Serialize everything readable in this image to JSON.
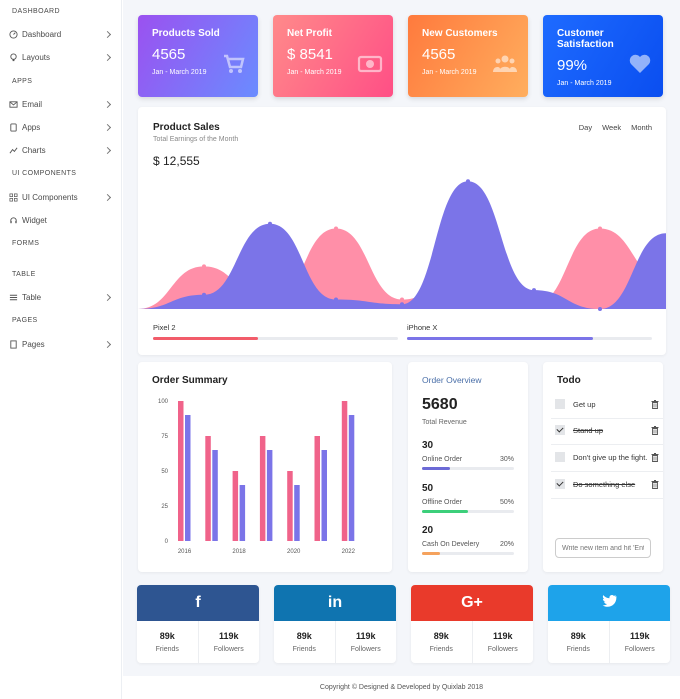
{
  "sidebar": {
    "items": [
      {
        "type": "heading",
        "label": "DASHBOARD"
      },
      {
        "type": "item",
        "label": "Dashboard",
        "icon": "dashboard-icon",
        "chevron": true
      },
      {
        "type": "item",
        "label": "Layouts",
        "icon": "bulb-icon",
        "chevron": true
      },
      {
        "type": "heading",
        "label": "APPS"
      },
      {
        "type": "item",
        "label": "Email",
        "icon": "mail-icon",
        "chevron": true
      },
      {
        "type": "item",
        "label": "Apps",
        "icon": "tablet-icon",
        "chevron": true
      },
      {
        "type": "item",
        "label": "Charts",
        "icon": "chart-icon",
        "chevron": true
      },
      {
        "type": "heading",
        "label": "UI COMPONENTS"
      },
      {
        "type": "item",
        "label": "UI Components",
        "icon": "grid-icon",
        "chevron": true
      },
      {
        "type": "item",
        "label": "Widget",
        "icon": "headset-icon",
        "chevron": false
      },
      {
        "type": "heading",
        "label": "FORMS"
      },
      {
        "type": "spacer"
      },
      {
        "type": "heading",
        "label": "TABLE"
      },
      {
        "type": "item",
        "label": "Table",
        "icon": "menu-icon",
        "chevron": true
      },
      {
        "type": "heading",
        "label": "PAGES"
      },
      {
        "type": "item",
        "label": "Pages",
        "icon": "page-icon",
        "chevron": true
      }
    ]
  },
  "stats": [
    {
      "title": "Products Sold",
      "value": "4565",
      "date": "Jan - March 2019",
      "icon": "cart-icon",
      "from": "#9b51f0",
      "to": "#6a8cff"
    },
    {
      "title": "Net Profit",
      "value": "$ 8541",
      "date": "Jan - March 2019",
      "icon": "money-icon",
      "from": "#ff8a8a",
      "to": "#ff4f86"
    },
    {
      "title": "New Customers",
      "value": "4565",
      "date": "Jan - March 2019",
      "icon": "users-icon",
      "from": "#ff7a3d",
      "to": "#ffae5e"
    },
    {
      "title": "Customer Satisfaction",
      "value": "99%",
      "date": "Jan - March 2019",
      "icon": "heart-icon",
      "from": "#1e6bff",
      "to": "#0a4ef0"
    }
  ],
  "product_sales": {
    "title": "Product Sales",
    "subtitle": "Total Earnings of the Month",
    "amount": "$ 12,555",
    "tabs": [
      "Day",
      "Week",
      "Month"
    ],
    "legend": [
      {
        "name": "Pixel 2",
        "color": "#f25c6a",
        "progress": 0.43
      },
      {
        "name": "iPhone X",
        "color": "#7b74e8",
        "progress": 0.76
      }
    ]
  },
  "order_summary": {
    "title": "Order Summary"
  },
  "chart_data": [
    {
      "type": "area",
      "x": [
        0,
        1,
        2,
        3,
        4,
        5,
        6,
        7,
        8
      ],
      "series": [
        {
          "name": "Pixel 2",
          "color": "#ff8fa8",
          "values": [
            0,
            45,
            5,
            85,
            10,
            40,
            5,
            85,
            30
          ]
        },
        {
          "name": "iPhone X",
          "color": "#7b74e8",
          "values": [
            0,
            15,
            90,
            10,
            5,
            135,
            20,
            0,
            80
          ]
        }
      ],
      "ylim": [
        0,
        150
      ]
    },
    {
      "type": "bar",
      "categories": [
        "2016",
        "",
        "2018",
        "",
        "2020",
        "",
        "2022"
      ],
      "series": [
        {
          "color": "#f0638a",
          "values": [
            100,
            75,
            50,
            75,
            50,
            75,
            100
          ]
        },
        {
          "color": "#7b74e8",
          "values": [
            90,
            65,
            40,
            65,
            40,
            65,
            90
          ]
        }
      ],
      "yticks": [
        "0",
        "25",
        "50",
        "75",
        "100"
      ],
      "ylim": [
        0,
        100
      ]
    }
  ],
  "order_overview": {
    "title": "Order Overview",
    "total": "5680",
    "total_label": "Total Revenue",
    "rows": [
      {
        "value": "30",
        "label": "Online Order",
        "pct": "30%",
        "progress": 0.3,
        "color": "#6c6ad6"
      },
      {
        "value": "50",
        "label": "Offline Order",
        "pct": "50%",
        "progress": 0.5,
        "color": "#3ccf7a"
      },
      {
        "value": "20",
        "label": "Cash On Develery",
        "pct": "20%",
        "progress": 0.2,
        "color": "#f5a25d"
      }
    ]
  },
  "todo": {
    "title": "Todo",
    "items": [
      {
        "text": "Get up",
        "done": false
      },
      {
        "text": "Stand up",
        "done": true
      },
      {
        "text": "Don't give up the fight.",
        "done": false
      },
      {
        "text": "Do something else",
        "done": true
      }
    ],
    "input_placeholder": "Write new item and hit 'Enter'..."
  },
  "social": [
    {
      "network": "facebook",
      "glyph": "f",
      "color": "#2e5591",
      "friends": "89k",
      "friends_label": "Friends",
      "followers": "119k",
      "followers_label": "Followers"
    },
    {
      "network": "linkedin",
      "glyph": "in",
      "color": "#0f74b0",
      "friends": "89k",
      "friends_label": "Friends",
      "followers": "119k",
      "followers_label": "Followers"
    },
    {
      "network": "google-plus",
      "glyph": "G+",
      "color": "#e93a2b",
      "friends": "89k",
      "friends_label": "Friends",
      "followers": "119k",
      "followers_label": "Followers"
    },
    {
      "network": "twitter",
      "glyph": "",
      "color": "#1ea3ea",
      "friends": "89k",
      "friends_label": "Friends",
      "followers": "119k",
      "followers_label": "Followers"
    }
  ],
  "footer": {
    "text": "Copyright © Designed & Developed by Quixlab 2018"
  }
}
